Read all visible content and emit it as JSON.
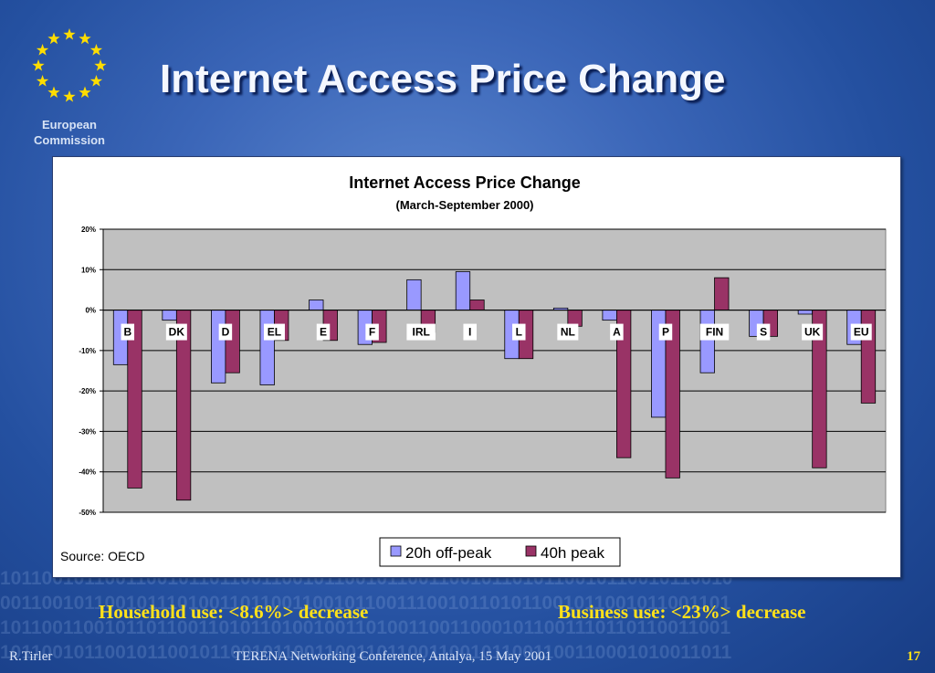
{
  "slide": {
    "title": "Internet Access Price Change",
    "logo_line1": "European",
    "logo_line2": "Commission",
    "household_note": "Household use: <8.6%> decrease",
    "business_note": "Business use: <23%> decrease",
    "author": "R.Tirler",
    "conference": "TERENA Networking Conference, Antalya, 15 May 2001",
    "page_number": "17"
  },
  "chart_data": {
    "type": "bar",
    "title": "Internet Access Price Change",
    "subtitle": "(March-September 2000)",
    "source": "Source: OECD",
    "categories": [
      "B",
      "DK",
      "D",
      "EL",
      "E",
      "F",
      "IRL",
      "I",
      "L",
      "NL",
      "A",
      "P",
      "FIN",
      "S",
      "UK",
      "EU"
    ],
    "ylim": [
      -50,
      20
    ],
    "yticks": [
      20,
      10,
      0,
      -10,
      -20,
      -30,
      -40,
      -50
    ],
    "ytick_labels": [
      "20%",
      "10%",
      "0%",
      "-10%",
      "-20%",
      "-30%",
      "-40%",
      "-50%"
    ],
    "grid": true,
    "legend_position": "bottom-center",
    "series": [
      {
        "name": "20h off-peak",
        "color": "#9999ff",
        "values": [
          -13.5,
          -2.5,
          -18,
          -18.5,
          2.5,
          -8.5,
          7.5,
          9.5,
          -12,
          0.5,
          -2.5,
          -26.5,
          -15.5,
          -6.5,
          -1,
          -8.5
        ]
      },
      {
        "name": "40h peak",
        "color": "#993366",
        "values": [
          -44,
          -47,
          -15.5,
          -7.5,
          -7.5,
          -8,
          -5.5,
          2.5,
          -12,
          -4,
          -36.5,
          -41.5,
          8,
          -6.5,
          -39,
          -23
        ]
      }
    ],
    "plot_background": "#c0c0c0"
  }
}
